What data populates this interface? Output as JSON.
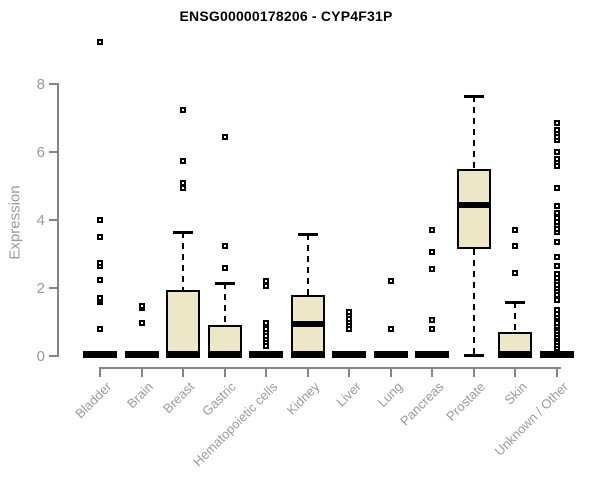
{
  "page": {
    "background": "#ffffff"
  },
  "chart_data": {
    "type": "box",
    "title": "ENSG00000178206 - CYP4F31P",
    "ylabel": "Expression",
    "xlabel": "",
    "ylim": [
      0,
      8
    ],
    "yticks": [
      0,
      2,
      4,
      6,
      8
    ],
    "grid": false,
    "legend": null,
    "categories": [
      "Bladder",
      "Brain",
      "Breast",
      "Gastric",
      "Hematopoietic cells",
      "Kidney",
      "Liver",
      "Lung",
      "Pancreas",
      "Prostate",
      "Skin",
      "Unknown / Other"
    ],
    "boxes": [
      {
        "category": "Bladder",
        "q1": 0,
        "median": 0,
        "q3": 0,
        "whisker_low": 0,
        "whisker_high": 0,
        "outliers": [
          0.8,
          1.6,
          1.65,
          1.7,
          2.25,
          2.65,
          2.75,
          3.5,
          4.0,
          9.25
        ]
      },
      {
        "category": "Brain",
        "q1": 0,
        "median": 0,
        "q3": 0,
        "whisker_low": 0,
        "whisker_high": 0,
        "outliers": [
          0.98,
          1.42,
          1.47
        ]
      },
      {
        "category": "Breast",
        "q1": 0,
        "median": 0,
        "q3": 1.95,
        "whisker_low": 0,
        "whisker_high": 3.65,
        "outliers": [
          4.95,
          5.1,
          5.75,
          7.25
        ]
      },
      {
        "category": "Gastric",
        "q1": 0,
        "median": 0,
        "q3": 0.9,
        "whisker_low": 0,
        "whisker_high": 2.15,
        "outliers": [
          2.6,
          3.25,
          6.45
        ]
      },
      {
        "category": "Hematopoietic cells",
        "q1": 0,
        "median": 0,
        "q3": 0,
        "whisker_low": 0,
        "whisker_high": 0,
        "outliers": [
          0.3,
          0.4,
          0.5,
          0.6,
          0.7,
          0.8,
          0.9,
          0.97,
          2.05,
          2.2
        ]
      },
      {
        "category": "Kidney",
        "q1": 0,
        "median": 0.95,
        "q3": 1.8,
        "whisker_low": 0,
        "whisker_high": 3.6,
        "outliers": []
      },
      {
        "category": "Liver",
        "q1": 0,
        "median": 0,
        "q3": 0,
        "whisker_low": 0,
        "whisker_high": 0,
        "outliers": [
          0.8,
          0.9,
          1.0,
          1.1,
          1.2,
          1.3
        ]
      },
      {
        "category": "Lung",
        "q1": 0,
        "median": 0,
        "q3": 0,
        "whisker_low": 0,
        "whisker_high": 0,
        "outliers": [
          0.78,
          2.2
        ]
      },
      {
        "category": "Pancreas",
        "q1": 0,
        "median": 0,
        "q3": 0,
        "whisker_low": 0,
        "whisker_high": 0,
        "outliers": [
          0.8,
          1.05,
          2.55,
          3.05,
          3.7
        ]
      },
      {
        "category": "Prostate",
        "q1": 3.15,
        "median": 4.45,
        "q3": 5.5,
        "whisker_low": 0,
        "whisker_high": 7.65,
        "outliers": []
      },
      {
        "category": "Skin",
        "q1": 0,
        "median": 0,
        "q3": 0.7,
        "whisker_low": 0,
        "whisker_high": 1.6,
        "outliers": [
          2.45,
          3.25,
          3.7
        ]
      },
      {
        "category": "Unknown / Other",
        "q1": 0,
        "median": 0,
        "q3": 0,
        "whisker_low": 0,
        "whisker_high": 0,
        "outliers": [
          0.25,
          0.33,
          0.41,
          0.49,
          0.57,
          0.65,
          0.73,
          0.81,
          0.89,
          0.97,
          1.15,
          1.25,
          1.35,
          1.65,
          1.8,
          1.9,
          2.0,
          2.1,
          2.2,
          2.3,
          2.4,
          2.65,
          2.9,
          3.35,
          3.65,
          3.75,
          3.85,
          3.95,
          4.05,
          4.2,
          4.4,
          4.95,
          5.6,
          5.7,
          5.8,
          6.0,
          6.35,
          6.45,
          6.55,
          6.65,
          6.85
        ]
      }
    ],
    "colors": {
      "box_fill": "#ede7c8",
      "box_stroke": "#000000",
      "axis": "#848484",
      "tick_label": "#9a9a9a",
      "title": "#000000"
    }
  }
}
